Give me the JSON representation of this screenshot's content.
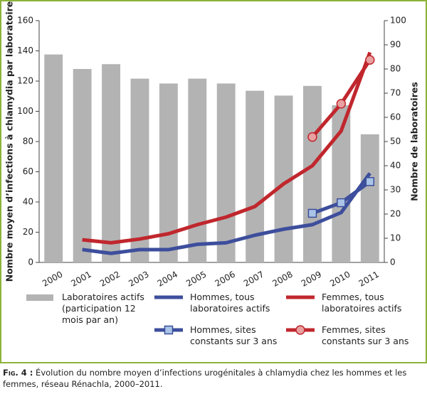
{
  "chart_data": {
    "type": "bar-line",
    "y_label": "Nombre moyen d’infections à chlamydia par laboratoire",
    "y2_label": "Nombre de laboratoires",
    "categories": [
      "2000",
      "2001",
      "2002",
      "2003",
      "2004",
      "2005",
      "2006",
      "2007",
      "2008",
      "2009",
      "2010",
      "2011"
    ],
    "ylim": [
      0,
      160
    ],
    "yticks": [
      0,
      20,
      40,
      60,
      80,
      100,
      120,
      140,
      160
    ],
    "y2lim": [
      0,
      100
    ],
    "y2ticks": [
      0,
      10,
      20,
      30,
      40,
      50,
      60,
      70,
      80,
      90,
      100
    ],
    "series": [
      {
        "name": "Laboratoires actifs (participation 12 mois par an)",
        "kind": "bar",
        "axis": "y2",
        "color": "#b3b3b3",
        "values": [
          86,
          80,
          82,
          76,
          74,
          76,
          74,
          71,
          69,
          73,
          65,
          53
        ]
      },
      {
        "name": "Hommes, tous laboratoires actifs",
        "kind": "line",
        "color": "#3d4e9c",
        "values": [
          null,
          8.5,
          6,
          8.5,
          8.5,
          12,
          13,
          18,
          22,
          25,
          33,
          59
        ]
      },
      {
        "name": "Femmes, tous laboratoires actifs",
        "kind": "line",
        "color": "#c0272d",
        "values": [
          null,
          15,
          13,
          15.5,
          19,
          25,
          30,
          37,
          52,
          64,
          87,
          139
        ]
      },
      {
        "name": "Hommes, sites constants sur 3 ans",
        "kind": "line",
        "color": "#3d4e9c",
        "marker": "square",
        "marker_color": "#a9c4e6",
        "values": [
          null,
          null,
          null,
          null,
          null,
          null,
          null,
          null,
          null,
          32.5,
          39.5,
          53.5
        ]
      },
      {
        "name": "Femmes, sites constants sur 3 ans",
        "kind": "line",
        "color": "#c0272d",
        "marker": "circle",
        "marker_color": "#e8a0a0",
        "values": [
          null,
          null,
          null,
          null,
          null,
          null,
          null,
          null,
          null,
          83,
          105,
          134
        ]
      }
    ]
  },
  "caption": {
    "label": "Fig. 4 :",
    "text": "Évolution du nombre moyen d’infections urogénitales à chlamydia chez les hommes et les femmes, réseau Rénachla, 2000–2011."
  }
}
